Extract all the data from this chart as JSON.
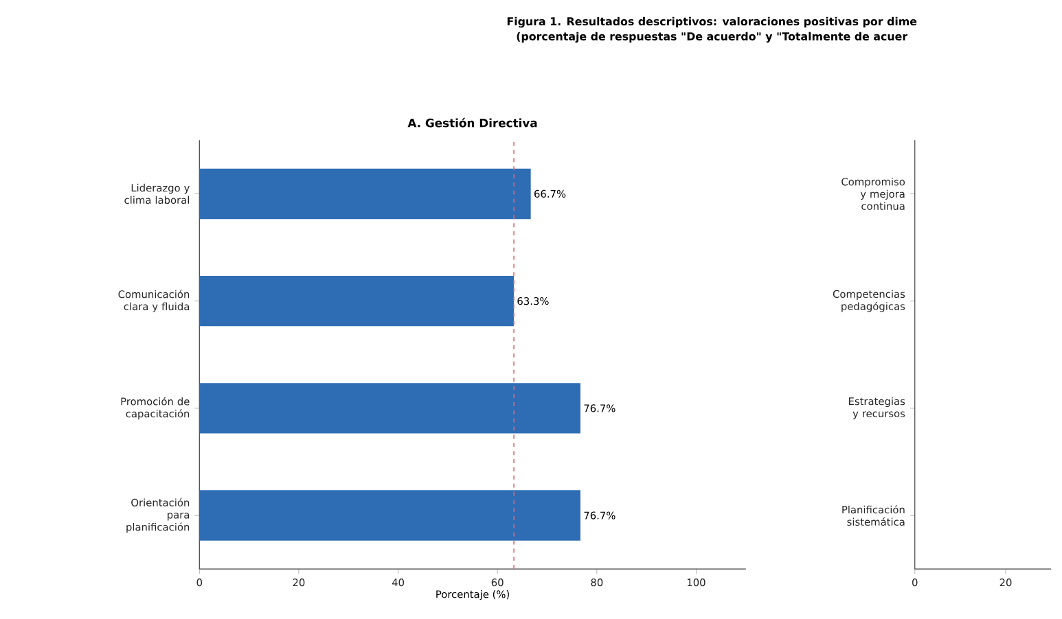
{
  "chart_data": [
    {
      "type": "bar",
      "orientation": "horizontal",
      "title": "A. Gestión Directiva",
      "annotations": [
        "Figura 1. Resultados descriptivos: valoraciones positivas por dime",
        "(porcentaje de respuestas \"De acuerdo\" y \"Totalmente de acuer"
      ],
      "categories": [
        "Liderazgo y clima laboral",
        "Comunicación clara y fluida",
        "Promoción de capacitación",
        "Orientación para planificación"
      ],
      "values": [
        66.7,
        63.3,
        76.7,
        76.7
      ],
      "value_labels": [
        "66.7%",
        "63.3%",
        "76.7%",
        "76.7%"
      ],
      "color": "#2e6db4",
      "xlim": [
        0,
        110
      ],
      "xticks": [
        0,
        20,
        40,
        60,
        80,
        100
      ],
      "xlabel": "Porcentaje (%)",
      "ref_lines": [
        {
          "axis": "x",
          "value": 63.3,
          "color": "#e8636a",
          "line_style": "dashed"
        }
      ]
    },
    {
      "type": "bar",
      "orientation": "horizontal",
      "categories": [
        "Compromiso y mejora continua",
        "Competencias pedagógicas",
        "Estrategias y recursos",
        "Planificación sistemática"
      ],
      "values": [
        null,
        null,
        null,
        null
      ],
      "xlim": [
        0,
        30
      ],
      "xticks": [
        0,
        20
      ]
    }
  ]
}
